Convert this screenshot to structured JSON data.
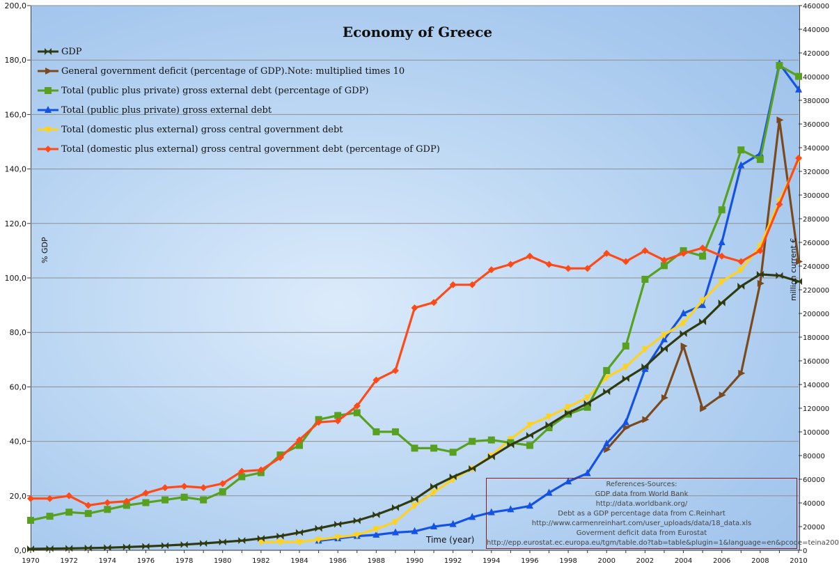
{
  "chart_data": {
    "type": "line",
    "title": "Economy of Greece",
    "xlabel": "Time (year)",
    "ylabel_left": "% GDP",
    "ylabel_right": "million current €",
    "x": [
      1970,
      1971,
      1972,
      1973,
      1974,
      1975,
      1976,
      1977,
      1978,
      1979,
      1980,
      1981,
      1982,
      1983,
      1984,
      1985,
      1986,
      1987,
      1988,
      1989,
      1990,
      1991,
      1992,
      1993,
      1994,
      1995,
      1996,
      1997,
      1998,
      1999,
      2000,
      2001,
      2002,
      2003,
      2004,
      2005,
      2006,
      2007,
      2008,
      2009,
      2010
    ],
    "x_ticks": [
      1970,
      1972,
      1974,
      1976,
      1978,
      1980,
      1982,
      1984,
      1986,
      1988,
      1990,
      1992,
      1994,
      1996,
      1998,
      2000,
      2002,
      2004,
      2006,
      2008,
      2010
    ],
    "y_left": {
      "min": 0,
      "max": 200,
      "step": 20,
      "tick_labels": [
        "0,0",
        "20,0",
        "40,0",
        "60,0",
        "80,0",
        "100,0",
        "120,0",
        "140,0",
        "160,0",
        "180,0",
        "200,0"
      ]
    },
    "y_right": {
      "min": 0,
      "max": 460000,
      "step": 20000
    },
    "grid": true,
    "legend": "top-left",
    "series": [
      {
        "name": "GDP",
        "axis": "right",
        "marker": "bowtie",
        "color": "#2f3a10",
        "values": [
          1200,
          1400,
          1600,
          1900,
          2200,
          2700,
          3300,
          4000,
          4800,
          5800,
          7000,
          8200,
          10000,
          12000,
          15000,
          18500,
          22000,
          25000,
          30000,
          36000,
          43000,
          54000,
          62000,
          69000,
          79000,
          89000,
          97000,
          106000,
          116000,
          124000,
          134000,
          145000,
          155000,
          170000,
          183000,
          193000,
          209000,
          223000,
          233000,
          232000,
          227000
        ]
      },
      {
        "name": "General government deficit (percentage of GDP).Note: multiplied times 10",
        "axis": "left",
        "marker": "arrow-right",
        "color": "#7a4a1e",
        "values": [
          null,
          null,
          null,
          null,
          null,
          null,
          null,
          null,
          null,
          null,
          null,
          null,
          null,
          null,
          null,
          null,
          null,
          null,
          null,
          null,
          null,
          null,
          null,
          null,
          null,
          null,
          null,
          null,
          null,
          null,
          37,
          45,
          48,
          56,
          75,
          52,
          57,
          65,
          98,
          158,
          106
        ]
      },
      {
        "name": "Total (public plus private) gross external debt (percentage of GDP)",
        "axis": "left",
        "marker": "square",
        "color": "#58a020",
        "values": [
          11,
          12.5,
          14,
          13.5,
          15,
          16.5,
          17.5,
          18.5,
          19.5,
          18.5,
          21.5,
          27,
          28.5,
          35,
          38.5,
          48,
          49.5,
          50.5,
          43.5,
          43.5,
          37.5,
          37.5,
          36,
          40,
          40.5,
          39.5,
          38.5,
          45,
          50,
          52.5,
          66,
          75,
          99.5,
          104.5,
          110,
          108,
          125,
          147,
          143.5,
          178,
          174
        ]
      },
      {
        "name": "Total (public plus private) gross external debt",
        "axis": "right",
        "marker": "triangle",
        "color": "#1452e6",
        "values": [
          null,
          null,
          null,
          null,
          null,
          null,
          null,
          null,
          null,
          null,
          null,
          null,
          null,
          null,
          null,
          8000,
          10000,
          12000,
          13000,
          15000,
          16000,
          20000,
          22000,
          28000,
          32000,
          34500,
          37500,
          48500,
          58000,
          65000,
          90000,
          108000,
          153000,
          178000,
          200000,
          207000,
          260000,
          325000,
          335000,
          411000,
          389000
        ]
      },
      {
        "name": "Total (domestic plus external) gross central government debt",
        "axis": "right",
        "marker": "triangle-down",
        "color": "#ffd21e",
        "values": [
          null,
          null,
          null,
          null,
          null,
          null,
          null,
          null,
          null,
          null,
          null,
          null,
          7000,
          7000,
          7000,
          9000,
          11000,
          13000,
          18000,
          24000,
          38000,
          49000,
          60000,
          69000,
          80000,
          94000,
          106000,
          113000,
          121000,
          129000,
          146000,
          155000,
          170000,
          182000,
          192000,
          211000,
          227000,
          237000,
          257000,
          295000,
          330000
        ]
      },
      {
        "name": "Total (domestic plus external) gross central government debt (percentage of GDP)",
        "axis": "left",
        "marker": "diamond",
        "color": "#ff4a18",
        "values": [
          19,
          19,
          20,
          16.5,
          17.5,
          18,
          21,
          23,
          23.5,
          23,
          24.5,
          29,
          29.5,
          34,
          40.5,
          47,
          47.5,
          53,
          62.5,
          66,
          89,
          91,
          97.5,
          97.5,
          103,
          105,
          108,
          105,
          103.5,
          103.5,
          109,
          106,
          110,
          106.5,
          109,
          111,
          108,
          106,
          110,
          127,
          144
        ]
      }
    ]
  },
  "references": {
    "lines": [
      "References-Sources:",
      "GDP data  from World Bank",
      "http://data.worldbank.org/",
      "Debt as a GDP percentage data  from  C.Reinhart",
      "http://www.carmenreinhart.com/user_uploads/data/18_data.xls",
      "Goverment deficit data  from Eurostat",
      "http://epp.eurostat.ec.europa.eu/tgm/table.do?tab=table&plugin=1&language=en&pcode=teina200"
    ]
  }
}
